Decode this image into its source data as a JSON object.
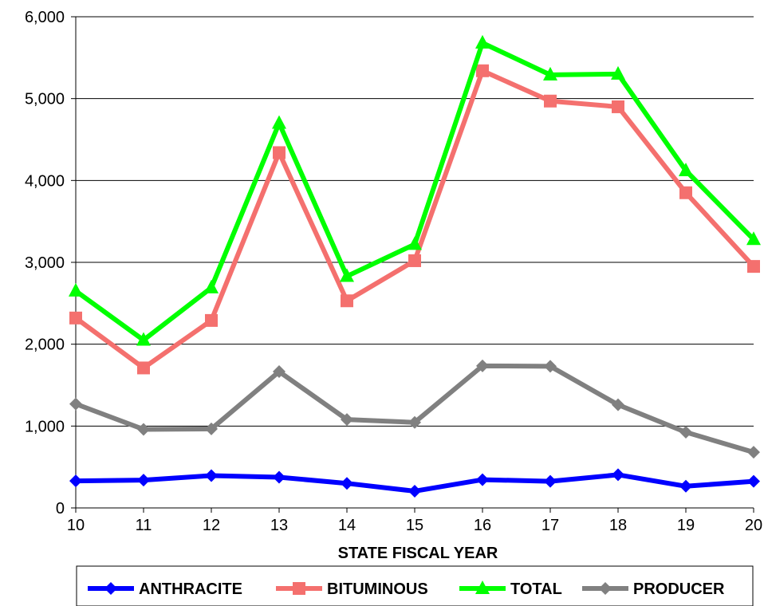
{
  "chart_data": {
    "type": "line",
    "x": [
      10,
      11,
      12,
      13,
      14,
      15,
      16,
      17,
      18,
      19,
      20
    ],
    "x_tick_labels": [
      "10",
      "11",
      "12",
      "13",
      "14",
      "15",
      "16",
      "17",
      "18",
      "19",
      "20"
    ],
    "xlabel": "STATE FISCAL YEAR",
    "ylabel": "",
    "ylim": [
      0,
      6000
    ],
    "y_tick_values": [
      0,
      1000,
      2000,
      3000,
      4000,
      5000,
      6000
    ],
    "y_tick_labels": [
      "0",
      "1,000",
      "2,000",
      "3,000",
      "4,000",
      "5,000",
      "6,000"
    ],
    "grid": "horizontal",
    "legend_position": "bottom",
    "series": [
      {
        "name": "ANTHRACITE",
        "color": "#0000FF",
        "marker": "diamond",
        "values": [
          330,
          340,
          395,
          375,
          300,
          205,
          345,
          325,
          405,
          265,
          325
        ]
      },
      {
        "name": "BITUMINOUS",
        "color": "#F4706E",
        "marker": "square",
        "values": [
          2320,
          1710,
          2290,
          4340,
          2530,
          3020,
          5340,
          4970,
          4900,
          3850,
          2950
        ]
      },
      {
        "name": "TOTAL",
        "color": "#00FF00",
        "marker": "triangle",
        "values": [
          2650,
          2050,
          2690,
          4700,
          2830,
          3220,
          5680,
          5290,
          5300,
          4120,
          3280
        ]
      },
      {
        "name": "PRODUCER",
        "color": "#808080",
        "marker": "diamond",
        "values": [
          1270,
          960,
          965,
          1665,
          1080,
          1045,
          1735,
          1730,
          1260,
          925,
          680
        ]
      }
    ]
  }
}
